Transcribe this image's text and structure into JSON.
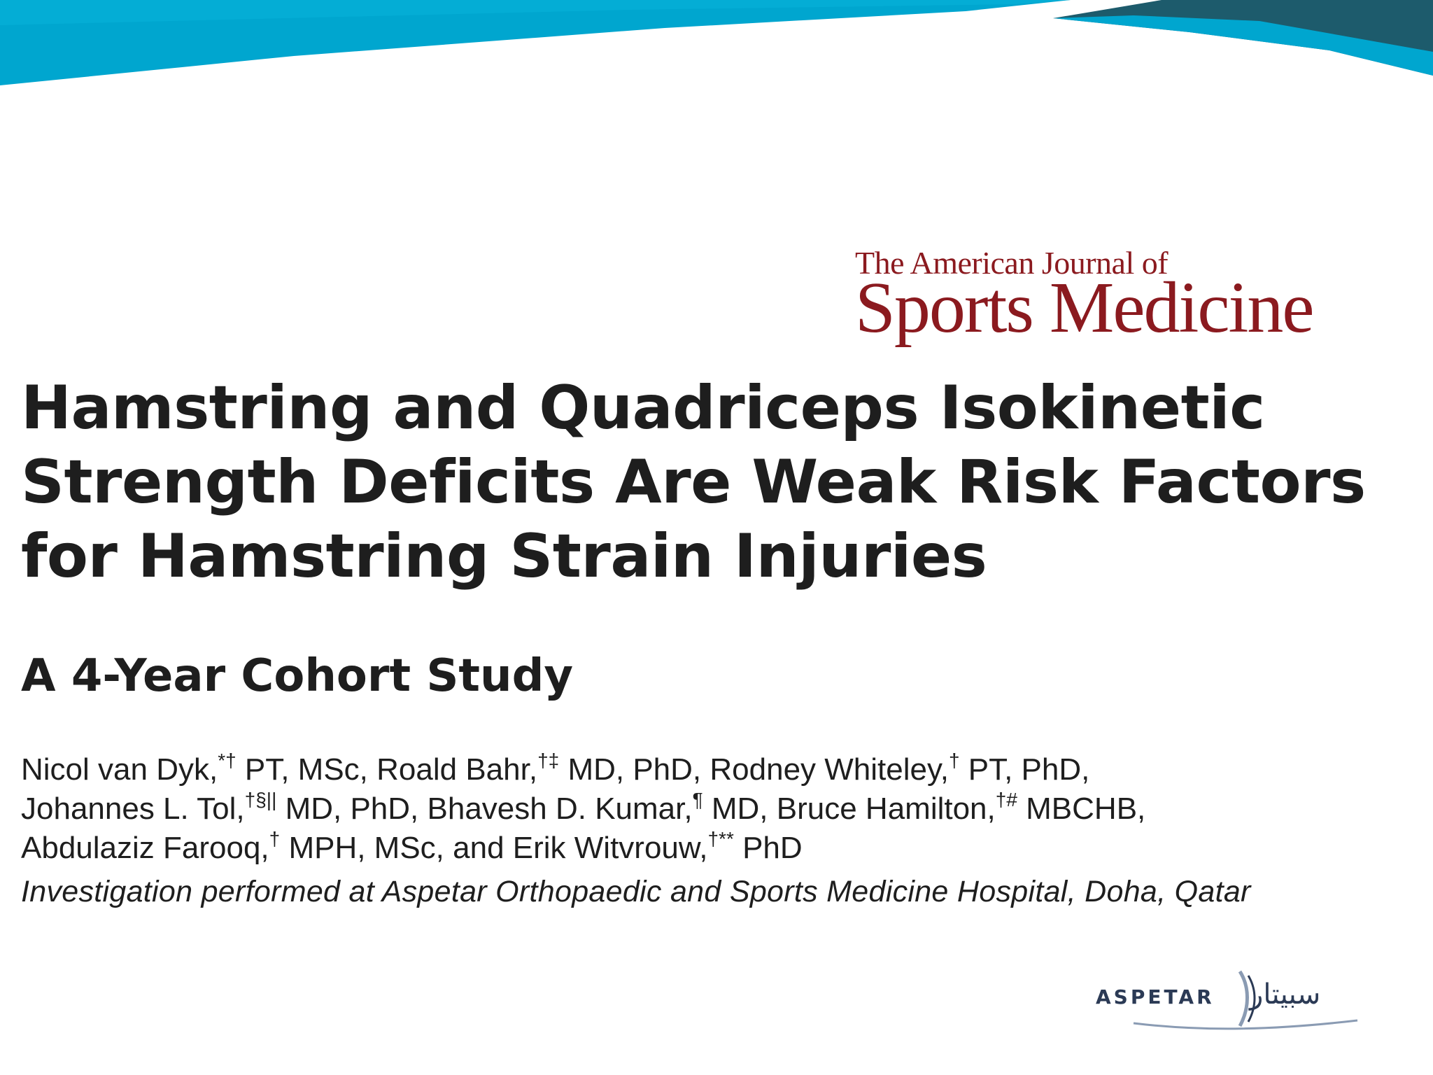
{
  "journal": {
    "line1": "The American Journal of",
    "line2": "Sports Medicine"
  },
  "title": {
    "line1": "Hamstring and Quadriceps Isokinetic",
    "line2": "Strength Deficits Are Weak Risk Factors",
    "line3": "for Hamstring Strain Injuries"
  },
  "subtitle": "A 4-Year Cohort Study",
  "authors": {
    "line1": [
      {
        "name": "Nicol van Dyk,",
        "sup": "*†",
        "cred": " PT, MSc, "
      },
      {
        "name": "Roald Bahr,",
        "sup": "†‡",
        "cred": " MD, PhD, "
      },
      {
        "name": "Rodney Whiteley,",
        "sup": "†",
        "cred": " PT, PhD,"
      }
    ],
    "line2": [
      {
        "name": "Johannes L. Tol,",
        "sup": "†§||",
        "cred": " MD, PhD, "
      },
      {
        "name": "Bhavesh D. Kumar,",
        "sup": "¶",
        "cred": " MD, "
      },
      {
        "name": "Bruce Hamilton,",
        "sup": "†#",
        "cred": " MBCHB,"
      }
    ],
    "line3": [
      {
        "name": "Abdulaziz Farooq,",
        "sup": "†",
        "cred": " MPH, MSc, and "
      },
      {
        "name": "Erik Witvrouw,",
        "sup": "†**",
        "cred": " PhD"
      }
    ]
  },
  "affiliation": "Investigation performed at Aspetar Orthopaedic and Sports Medicine Hospital, Doha, Qatar",
  "aspetar": {
    "latin": "ASPETAR",
    "arabic": "سبيتار"
  },
  "colors": {
    "banner_blue": "#00a6cf",
    "banner_dark": "#1d5b6c",
    "journal_red": "#8b1a1f"
  }
}
